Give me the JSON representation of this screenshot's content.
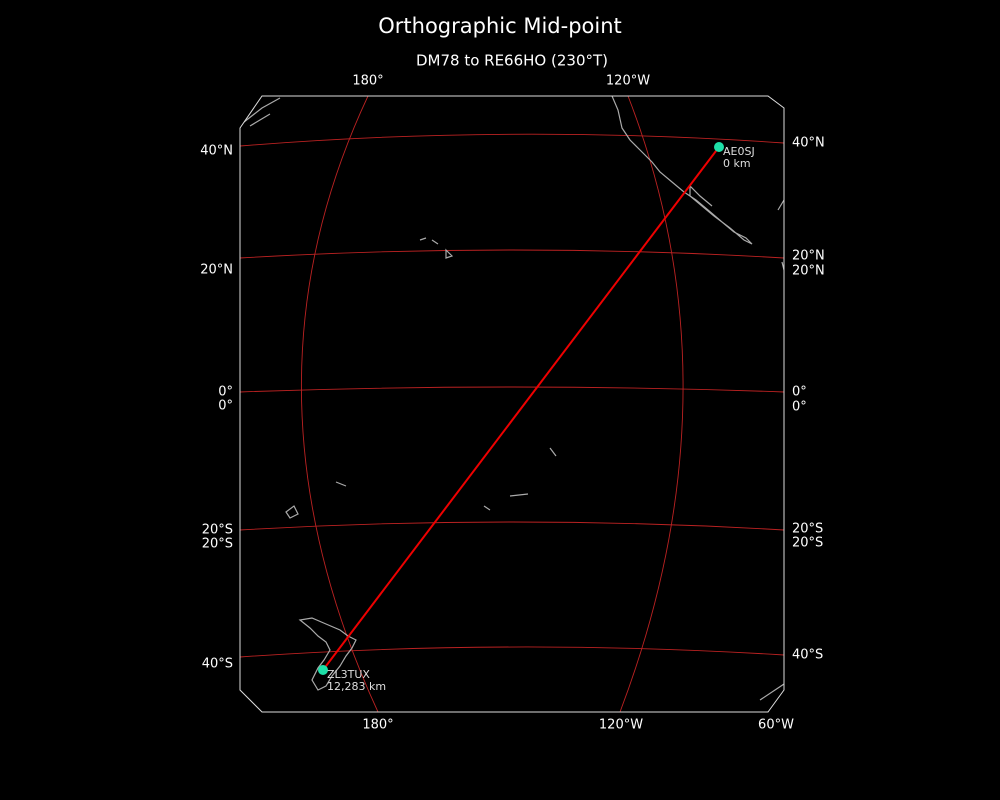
{
  "title": "Orthographic Mid-point",
  "subtitle": "DM78 to RE66HO (230°T)",
  "grid_labels": {
    "top": [
      "180°",
      "120°W"
    ],
    "bottom": [
      "180°",
      "120°W",
      "60°W"
    ],
    "left": [
      "40°N",
      "20°N",
      "0°",
      "0°",
      "20°S",
      "20°S",
      "40°S"
    ],
    "right": [
      "40°N",
      "20°N",
      "20°N",
      "0°",
      "0°",
      "20°S",
      "20°S",
      "40°S"
    ]
  },
  "stations": [
    {
      "call": "AE0SJ",
      "distance": "0 km"
    },
    {
      "call": "ZL3TUX",
      "distance": "12,283 km"
    }
  ]
}
